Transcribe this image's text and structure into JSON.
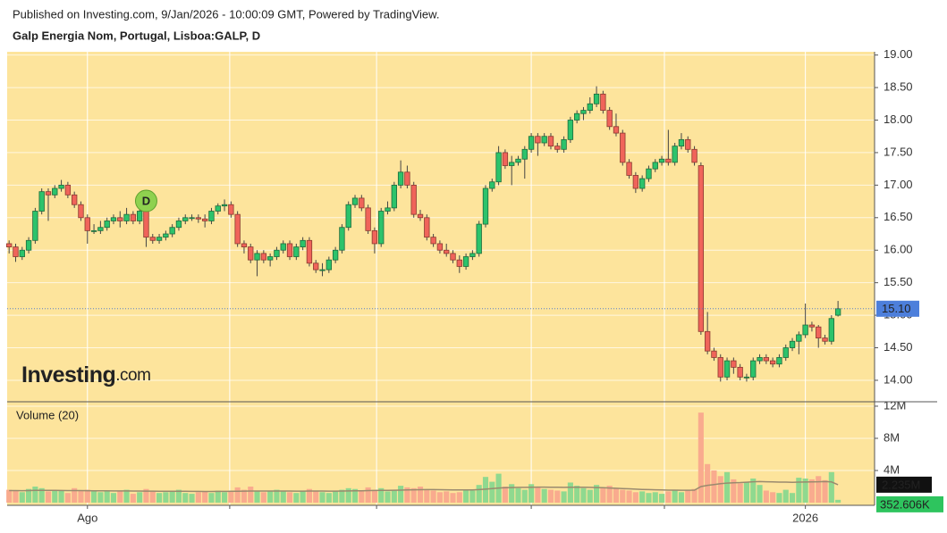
{
  "header": "Published on Investing.com, 9/Jan/2026 - 10:00:09 GMT, Powered by TradingView.",
  "brand": "Investing",
  "brand_suffix": ".com",
  "chart_data": {
    "type": "candlestick",
    "title": "Galp Energia Nom, Portugal, Lisboa:GALP, D",
    "up_color": "#2cc36b",
    "down_color": "#f0645a",
    "background": "#fde49c",
    "xlim": [
      -0.3,
      132.6
    ],
    "xticks": [
      {
        "value": 12,
        "label": "Ago"
      },
      {
        "value": 122,
        "label": "2026"
      }
    ],
    "x_gridlines": [
      33.8,
      56.3,
      80,
      100.4
    ],
    "ylim": [
      13.67,
      19.05
    ],
    "yticks": [
      {
        "value": 14,
        "label": "14.00"
      },
      {
        "value": 14.5,
        "label": "14.50"
      },
      {
        "value": 15,
        "label": "15.00"
      },
      {
        "value": 15.5,
        "label": "15.50"
      },
      {
        "value": 16,
        "label": "16.00"
      },
      {
        "value": 16.5,
        "label": "16.50"
      },
      {
        "value": 17,
        "label": "17.00"
      },
      {
        "value": 17.5,
        "label": "17.50"
      },
      {
        "value": 18,
        "label": "18.00"
      },
      {
        "value": 18.5,
        "label": "18.50"
      },
      {
        "value": 19,
        "label": "19.00"
      }
    ],
    "grid": true,
    "last_price_label": "15.10",
    "events": [
      {
        "x": 21,
        "label": "D"
      }
    ],
    "candles": [
      [
        16.1,
        16.15,
        15.95,
        16.05
      ],
      [
        16.05,
        16.1,
        15.82,
        15.9
      ],
      [
        15.9,
        16.05,
        15.85,
        16.0
      ],
      [
        16.0,
        16.2,
        15.95,
        16.15
      ],
      [
        16.15,
        16.65,
        16.1,
        16.6
      ],
      [
        16.6,
        16.95,
        16.55,
        16.9
      ],
      [
        16.9,
        16.95,
        16.45,
        16.85
      ],
      [
        16.85,
        17.0,
        16.8,
        16.95
      ],
      [
        16.95,
        17.08,
        16.9,
        17.0
      ],
      [
        17.0,
        17.05,
        16.8,
        16.85
      ],
      [
        16.85,
        16.9,
        16.65,
        16.7
      ],
      [
        16.7,
        16.75,
        16.45,
        16.5
      ],
      [
        16.5,
        16.55,
        16.1,
        16.3
      ],
      [
        16.3,
        16.4,
        16.25,
        16.3
      ],
      [
        16.3,
        16.45,
        16.25,
        16.35
      ],
      [
        16.35,
        16.5,
        16.3,
        16.45
      ],
      [
        16.45,
        16.55,
        16.4,
        16.5
      ],
      [
        16.5,
        16.6,
        16.35,
        16.45
      ],
      [
        16.45,
        16.65,
        16.4,
        16.55
      ],
      [
        16.55,
        16.6,
        16.4,
        16.45
      ],
      [
        16.45,
        16.65,
        16.4,
        16.6
      ],
      [
        16.6,
        16.62,
        16.05,
        16.2
      ],
      [
        16.2,
        16.25,
        16.1,
        16.15
      ],
      [
        16.15,
        16.25,
        16.1,
        16.2
      ],
      [
        16.2,
        16.3,
        16.15,
        16.25
      ],
      [
        16.25,
        16.4,
        16.2,
        16.35
      ],
      [
        16.35,
        16.5,
        16.3,
        16.45
      ],
      [
        16.45,
        16.55,
        16.4,
        16.5
      ],
      [
        16.5,
        16.55,
        16.45,
        16.5
      ],
      [
        16.5,
        16.55,
        16.42,
        16.48
      ],
      [
        16.48,
        16.55,
        16.35,
        16.45
      ],
      [
        16.45,
        16.65,
        16.4,
        16.6
      ],
      [
        16.6,
        16.72,
        16.55,
        16.68
      ],
      [
        16.68,
        16.78,
        16.6,
        16.7
      ],
      [
        16.7,
        16.75,
        16.5,
        16.55
      ],
      [
        16.55,
        16.6,
        16.05,
        16.1
      ],
      [
        16.1,
        16.15,
        15.95,
        16.05
      ],
      [
        16.05,
        16.1,
        15.8,
        15.85
      ],
      [
        15.85,
        16.0,
        15.6,
        15.95
      ],
      [
        15.95,
        16.0,
        15.8,
        15.85
      ],
      [
        15.85,
        15.95,
        15.75,
        15.9
      ],
      [
        15.9,
        16.05,
        15.85,
        16.0
      ],
      [
        16.0,
        16.15,
        15.95,
        16.1
      ],
      [
        16.1,
        16.15,
        15.85,
        15.9
      ],
      [
        15.9,
        16.1,
        15.85,
        16.05
      ],
      [
        16.05,
        16.2,
        16.0,
        16.15
      ],
      [
        16.15,
        16.2,
        15.75,
        15.8
      ],
      [
        15.8,
        15.85,
        15.65,
        15.7
      ],
      [
        15.7,
        15.8,
        15.6,
        15.7
      ],
      [
        15.7,
        15.9,
        15.65,
        15.85
      ],
      [
        15.85,
        16.05,
        15.8,
        16.0
      ],
      [
        16.0,
        16.4,
        15.95,
        16.35
      ],
      [
        16.35,
        16.75,
        16.3,
        16.7
      ],
      [
        16.7,
        16.85,
        16.65,
        16.8
      ],
      [
        16.8,
        16.85,
        16.6,
        16.65
      ],
      [
        16.65,
        16.7,
        16.25,
        16.3
      ],
      [
        16.3,
        16.35,
        15.95,
        16.1
      ],
      [
        16.1,
        16.65,
        16.05,
        16.6
      ],
      [
        16.6,
        16.75,
        16.55,
        16.65
      ],
      [
        16.65,
        17.05,
        16.6,
        17.0
      ],
      [
        17.0,
        17.38,
        16.95,
        17.2
      ],
      [
        17.2,
        17.3,
        16.95,
        17.0
      ],
      [
        17.0,
        17.05,
        16.5,
        16.55
      ],
      [
        16.55,
        16.62,
        16.45,
        16.5
      ],
      [
        16.5,
        16.55,
        16.15,
        16.2
      ],
      [
        16.2,
        16.25,
        16.05,
        16.1
      ],
      [
        16.1,
        16.15,
        15.95,
        16.0
      ],
      [
        16.0,
        16.1,
        15.9,
        15.95
      ],
      [
        15.95,
        16.0,
        15.8,
        15.85
      ],
      [
        15.85,
        15.92,
        15.65,
        15.75
      ],
      [
        15.75,
        15.95,
        15.7,
        15.9
      ],
      [
        15.9,
        16.0,
        15.85,
        15.95
      ],
      [
        15.95,
        16.45,
        15.9,
        16.4
      ],
      [
        16.4,
        17.0,
        16.35,
        16.95
      ],
      [
        16.95,
        17.1,
        16.9,
        17.05
      ],
      [
        17.05,
        17.6,
        17.0,
        17.5
      ],
      [
        17.5,
        17.55,
        17.25,
        17.3
      ],
      [
        17.3,
        17.45,
        17.0,
        17.35
      ],
      [
        17.35,
        17.45,
        17.3,
        17.4
      ],
      [
        17.4,
        17.6,
        17.1,
        17.55
      ],
      [
        17.55,
        17.8,
        17.5,
        17.75
      ],
      [
        17.75,
        17.8,
        17.45,
        17.65
      ],
      [
        17.65,
        17.8,
        17.6,
        17.75
      ],
      [
        17.75,
        17.8,
        17.55,
        17.6
      ],
      [
        17.6,
        17.65,
        17.5,
        17.55
      ],
      [
        17.55,
        17.75,
        17.5,
        17.7
      ],
      [
        17.7,
        18.05,
        17.65,
        18.0
      ],
      [
        18.0,
        18.15,
        17.95,
        18.1
      ],
      [
        18.1,
        18.2,
        18.0,
        18.15
      ],
      [
        18.15,
        18.35,
        18.1,
        18.25
      ],
      [
        18.25,
        18.52,
        18.2,
        18.4
      ],
      [
        18.4,
        18.45,
        18.1,
        18.15
      ],
      [
        18.15,
        18.2,
        17.85,
        17.9
      ],
      [
        17.9,
        18.1,
        17.75,
        17.8
      ],
      [
        17.8,
        17.85,
        17.3,
        17.35
      ],
      [
        17.35,
        17.4,
        17.1,
        17.15
      ],
      [
        17.15,
        17.2,
        16.88,
        16.95
      ],
      [
        16.95,
        17.15,
        16.9,
        17.1
      ],
      [
        17.1,
        17.3,
        17.05,
        17.25
      ],
      [
        17.25,
        17.4,
        17.2,
        17.35
      ],
      [
        17.35,
        17.45,
        17.3,
        17.4
      ],
      [
        17.4,
        17.85,
        17.3,
        17.35
      ],
      [
        17.35,
        17.65,
        17.3,
        17.6
      ],
      [
        17.6,
        17.8,
        17.55,
        17.7
      ],
      [
        17.7,
        17.75,
        17.5,
        17.55
      ],
      [
        17.55,
        17.6,
        17.3,
        17.35
      ],
      [
        17.3,
        17.35,
        14.7,
        14.75
      ],
      [
        14.75,
        15.05,
        14.4,
        14.45
      ],
      [
        14.45,
        14.5,
        14.3,
        14.35
      ],
      [
        14.35,
        14.4,
        13.98,
        14.05
      ],
      [
        14.05,
        14.35,
        14.0,
        14.3
      ],
      [
        14.3,
        14.35,
        14.1,
        14.2
      ],
      [
        14.2,
        14.25,
        14.0,
        14.05
      ],
      [
        14.05,
        14.1,
        13.98,
        14.05
      ],
      [
        14.05,
        14.35,
        14.0,
        14.3
      ],
      [
        14.3,
        14.4,
        14.25,
        14.35
      ],
      [
        14.35,
        14.4,
        14.25,
        14.3
      ],
      [
        14.3,
        14.35,
        14.2,
        14.25
      ],
      [
        14.25,
        14.4,
        14.2,
        14.35
      ],
      [
        14.35,
        14.55,
        14.3,
        14.5
      ],
      [
        14.5,
        14.65,
        14.45,
        14.6
      ],
      [
        14.6,
        14.75,
        14.4,
        14.7
      ],
      [
        14.7,
        15.18,
        14.65,
        14.85
      ],
      [
        14.85,
        14.9,
        14.75,
        14.82
      ],
      [
        14.82,
        14.85,
        14.5,
        14.65
      ],
      [
        14.65,
        14.7,
        14.55,
        14.6
      ],
      [
        14.6,
        15.0,
        14.55,
        14.95
      ],
      [
        15.0,
        15.22,
        14.98,
        15.1
      ]
    ],
    "volume": {
      "title": "Volume (20)",
      "up_color": "#8fd98f",
      "down_color": "#f9ab8e",
      "ma_color": "#9a8a6e",
      "y2lim": [
        0,
        12.55
      ],
      "y2ticks": [
        {
          "value": 4,
          "label": "4M"
        },
        {
          "value": 8,
          "label": "8M"
        },
        {
          "value": 12,
          "label": "12M"
        }
      ],
      "value_label": "352.606K",
      "ma_value_label": "2.235M",
      "values": [
        1.6,
        1.5,
        1.3,
        1.7,
        2.0,
        1.8,
        1.4,
        1.6,
        1.5,
        1.2,
        1.8,
        1.5,
        1.6,
        1.4,
        1.3,
        1.5,
        1.2,
        1.4,
        1.6,
        1.1,
        1.3,
        1.7,
        1.4,
        1.2,
        1.3,
        1.5,
        1.6,
        1.2,
        1.1,
        1.3,
        1.4,
        1.2,
        1.5,
        1.3,
        1.4,
        1.9,
        1.6,
        2.0,
        1.5,
        1.3,
        1.4,
        1.6,
        1.5,
        1.3,
        1.2,
        1.4,
        1.7,
        1.5,
        1.3,
        1.2,
        1.4,
        1.6,
        1.8,
        1.7,
        1.5,
        1.9,
        1.6,
        1.8,
        1.4,
        1.6,
        2.1,
        1.9,
        1.8,
        2.0,
        1.6,
        1.5,
        1.3,
        1.4,
        1.2,
        1.3,
        1.6,
        1.5,
        2.2,
        3.2,
        2.6,
        3.6,
        2.0,
        2.3,
        1.8,
        1.6,
        2.3,
        1.9,
        1.7,
        1.6,
        1.5,
        1.4,
        2.5,
        2.1,
        1.8,
        1.6,
        2.2,
        1.9,
        2.1,
        1.8,
        1.6,
        1.5,
        1.3,
        1.4,
        1.2,
        1.3,
        1.1,
        1.4,
        1.5,
        1.3,
        1.6,
        1.7,
        11.2,
        4.8,
        4.0,
        3.3,
        3.8,
        2.9,
        2.4,
        2.6,
        3.0,
        2.2,
        1.5,
        1.3,
        1.2,
        1.6,
        1.2,
        3.1,
        3.0,
        2.9,
        3.3,
        2.8,
        3.8,
        0.352606
      ],
      "ma_values": [
        1.5,
        1.5,
        1.49,
        1.5,
        1.52,
        1.53,
        1.52,
        1.52,
        1.51,
        1.5,
        1.5,
        1.5,
        1.49,
        1.48,
        1.47,
        1.47,
        1.46,
        1.46,
        1.45,
        1.44,
        1.44,
        1.43,
        1.43,
        1.42,
        1.42,
        1.42,
        1.41,
        1.41,
        1.4,
        1.4,
        1.39,
        1.39,
        1.4,
        1.4,
        1.41,
        1.42,
        1.43,
        1.44,
        1.44,
        1.44,
        1.44,
        1.44,
        1.44,
        1.44,
        1.43,
        1.43,
        1.44,
        1.44,
        1.44,
        1.43,
        1.43,
        1.44,
        1.45,
        1.47,
        1.48,
        1.5,
        1.51,
        1.52,
        1.53,
        1.54,
        1.56,
        1.58,
        1.6,
        1.61,
        1.62,
        1.62,
        1.61,
        1.6,
        1.59,
        1.58,
        1.58,
        1.58,
        1.62,
        1.68,
        1.74,
        1.82,
        1.85,
        1.88,
        1.9,
        1.9,
        1.92,
        1.93,
        1.93,
        1.92,
        1.91,
        1.9,
        1.92,
        1.92,
        1.91,
        1.9,
        1.88,
        1.85,
        1.82,
        1.79,
        1.76,
        1.72,
        1.68,
        1.64,
        1.62,
        1.6,
        1.58,
        1.56,
        1.55,
        1.54,
        1.54,
        1.55,
        2.0,
        2.15,
        2.26,
        2.35,
        2.43,
        2.48,
        2.5,
        2.54,
        2.6,
        2.62,
        2.6,
        2.58,
        2.55,
        2.55,
        2.52,
        2.55,
        2.56,
        2.58,
        2.6,
        2.62,
        2.58,
        2.235
      ]
    }
  }
}
